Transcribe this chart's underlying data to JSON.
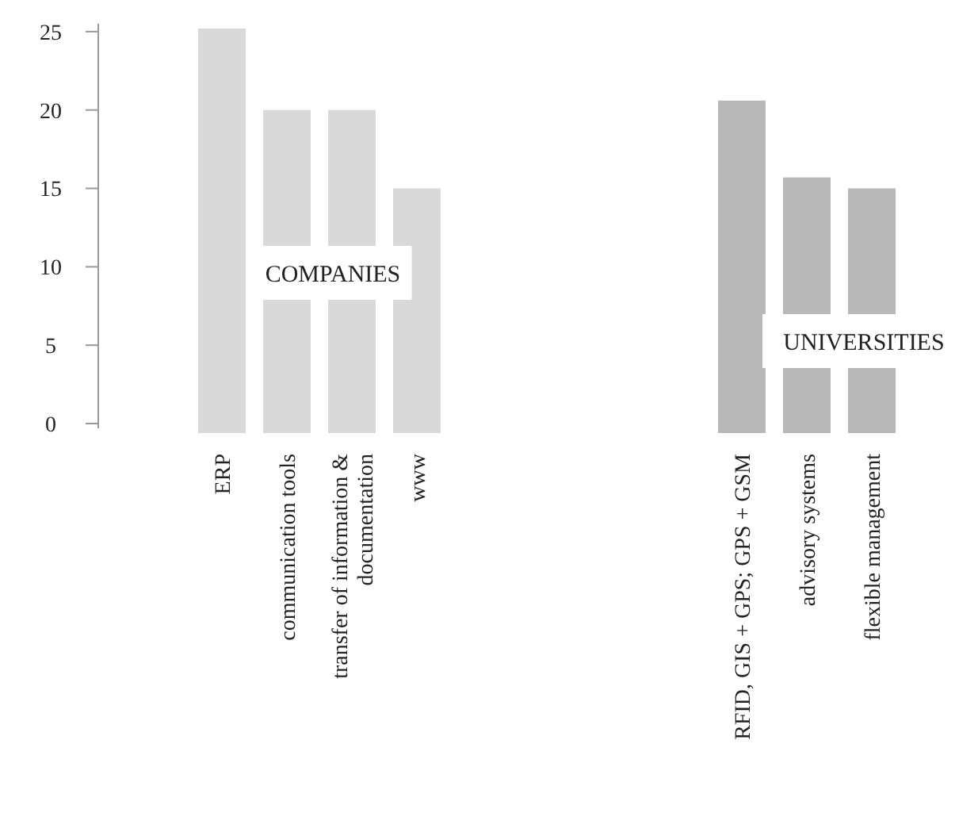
{
  "chart_data": {
    "type": "bar",
    "categories": [
      "ERP",
      "communication tools",
      "transfer of information & documentation",
      "www",
      null,
      null,
      null,
      null,
      "RFID, GIS + GPS; GPS + GSM",
      "advisory systems",
      "flexible management"
    ],
    "values": [
      25.2,
      20,
      20,
      15,
      null,
      null,
      null,
      null,
      20.6,
      15.7,
      15
    ],
    "colors": [
      "#d9d9d9",
      "#d9d9d9",
      "#d9d9d9",
      "#d9d9d9",
      null,
      null,
      null,
      null,
      "#b8b8b8",
      "#b8b8b8",
      "#b8b8b8"
    ],
    "ylim": [
      0,
      25.5
    ],
    "yticks": [
      0,
      5,
      10,
      15,
      20,
      25
    ],
    "grid": false,
    "annotations": [
      "COMPANIES",
      "UNIVERSITIES"
    ]
  }
}
